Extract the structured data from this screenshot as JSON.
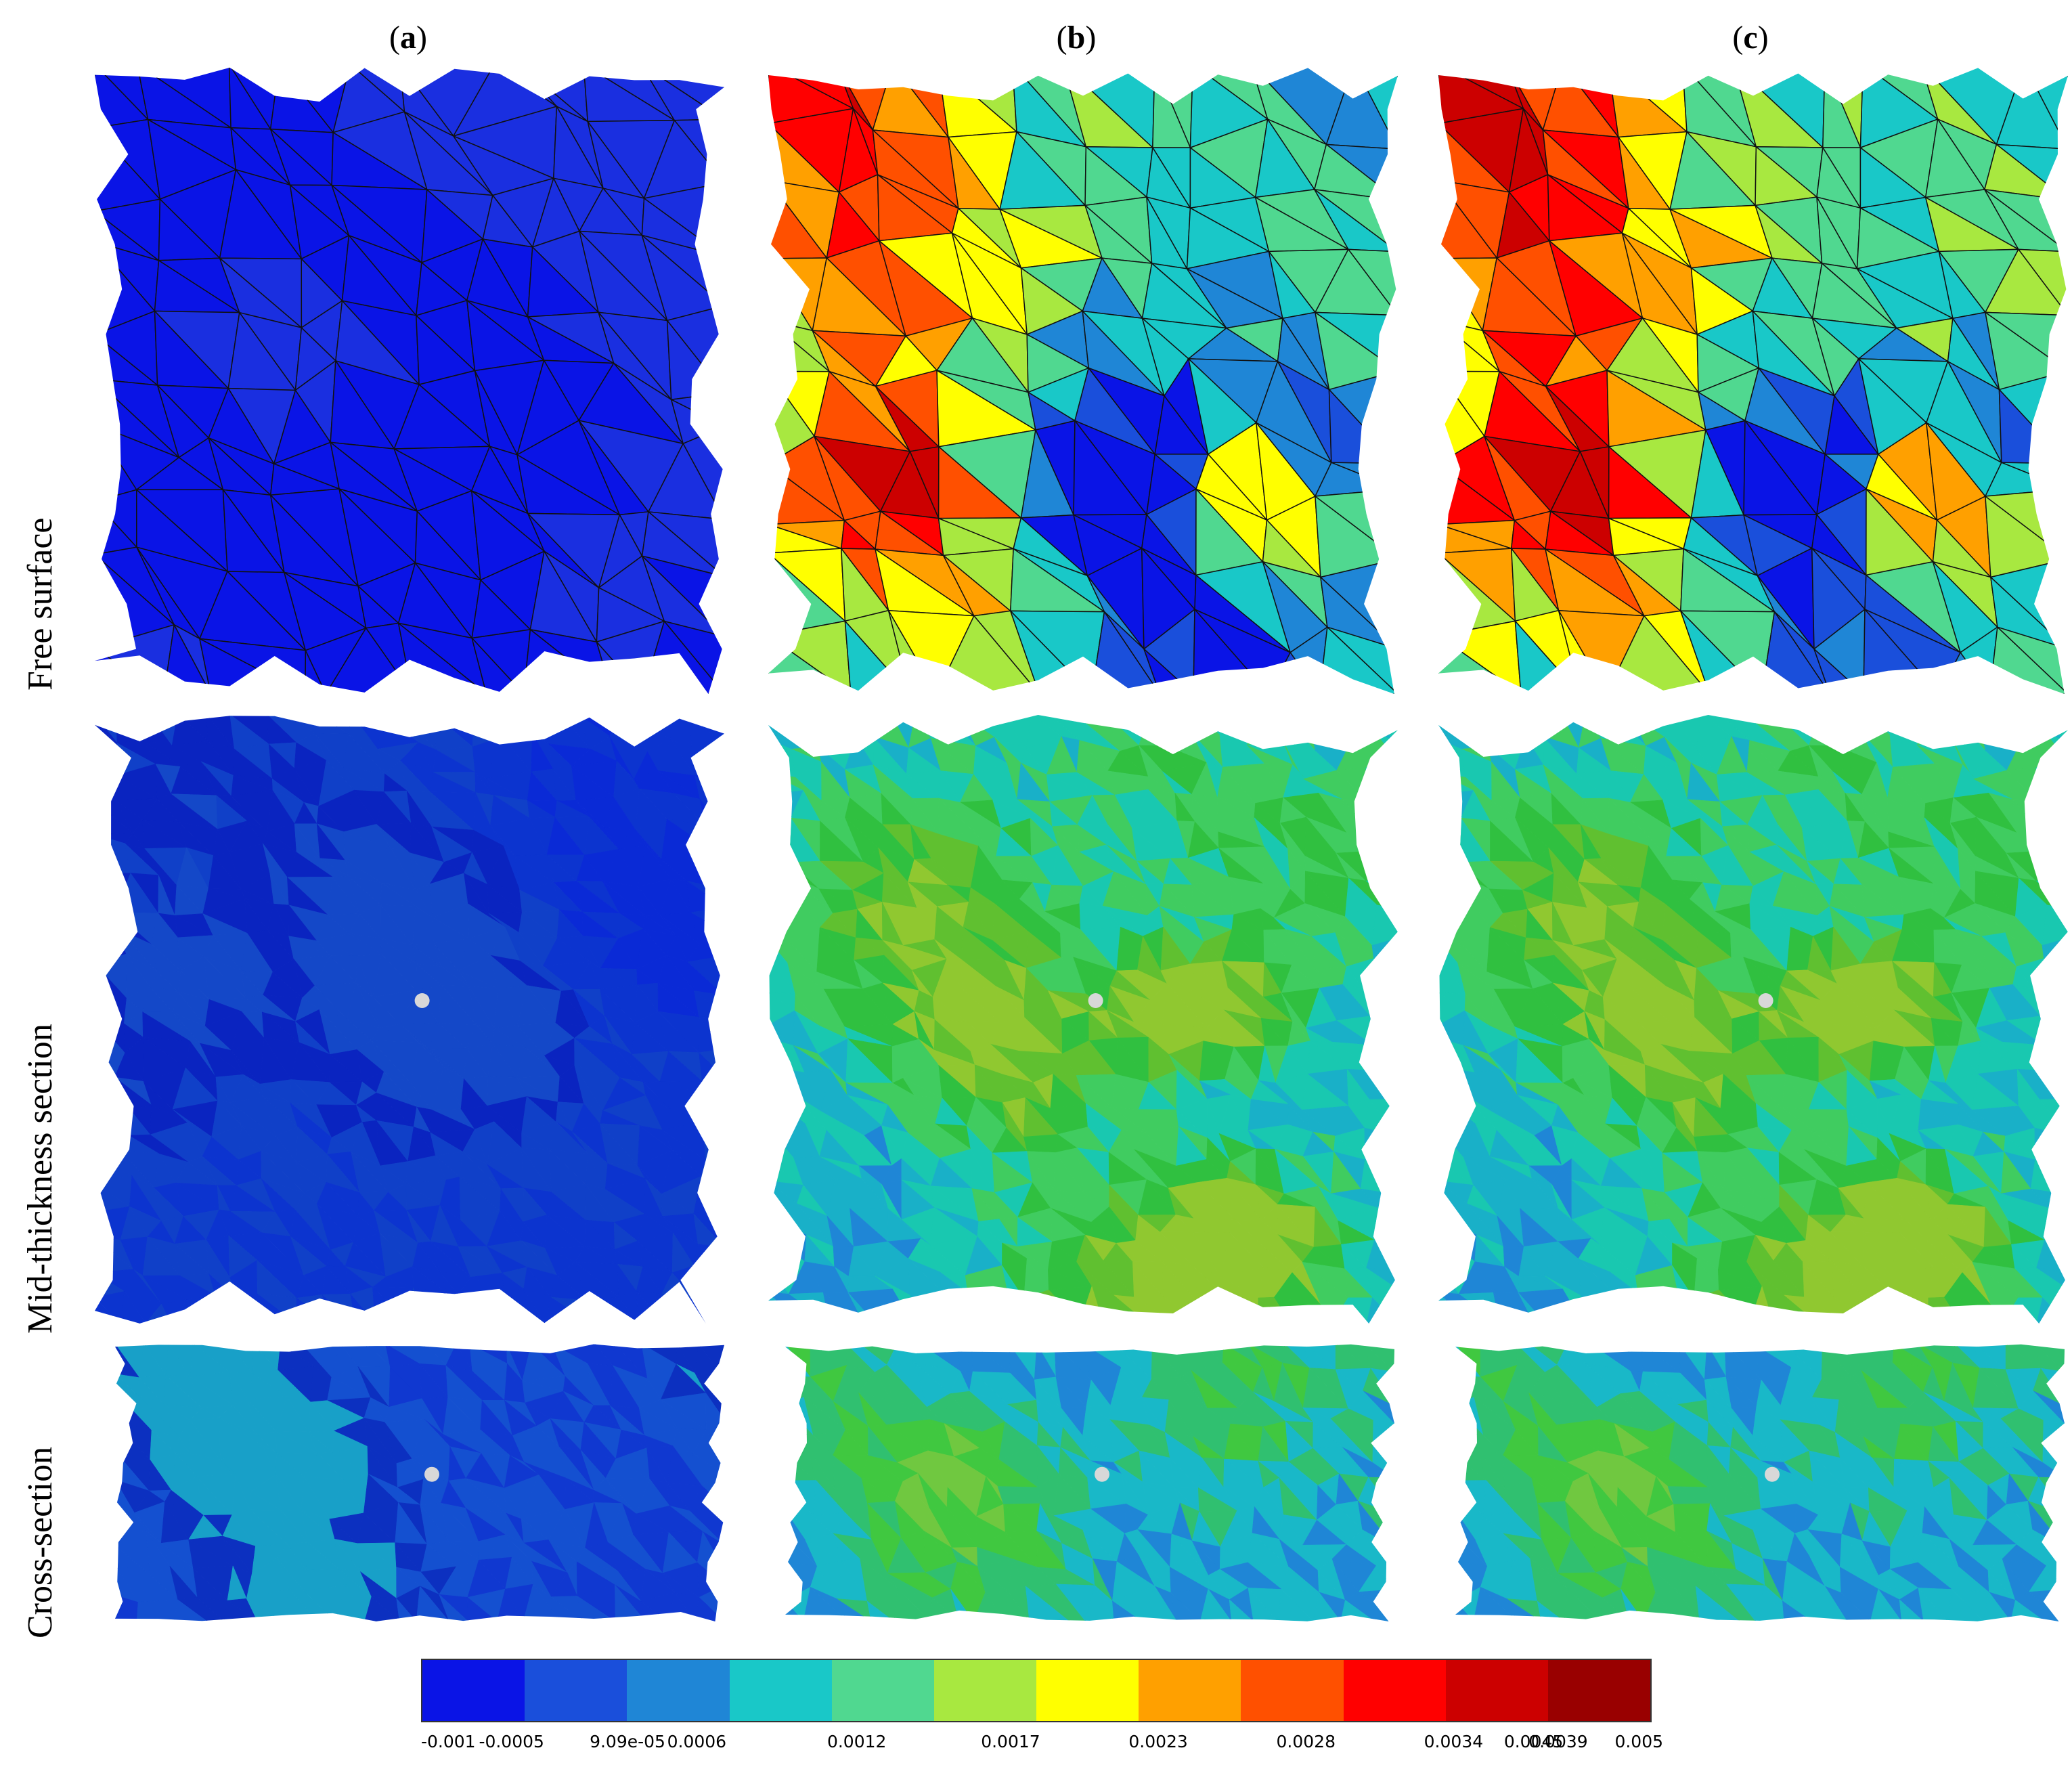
{
  "columns": [
    {
      "open": "(",
      "letter": "a",
      "close": ")"
    },
    {
      "open": "(",
      "letter": "b",
      "close": ")"
    },
    {
      "open": "(",
      "letter": "c",
      "close": ")"
    }
  ],
  "rows": [
    "Free surface",
    "Mid-thickness section",
    "Cross-section"
  ],
  "colorbar": {
    "colors": [
      "#0a14e6",
      "#1a4fdb",
      "#1f86d6",
      "#19c8c8",
      "#50d890",
      "#a8e840",
      "#ffff00",
      "#ffa000",
      "#ff5000",
      "#ff0000",
      "#cc0000",
      "#990000"
    ],
    "ticks": [
      "-0.001",
      "-0.0005",
      "9.09e-05",
      "0.0006",
      "0.0012",
      "0.0017",
      "0.0023",
      "0.0028",
      "0.0034",
      "0.0039",
      "0.0045",
      "0.005"
    ]
  },
  "field_palettes": {
    "free_a": [
      "#0a14e6",
      "#0a14e6",
      "#0a14e6",
      "#1a2fe0"
    ],
    "free_bc": [
      "#0a14e6",
      "#1a4fdb",
      "#1f86d6",
      "#19c8c8",
      "#50d890",
      "#a8e840",
      "#ffff00",
      "#ffa000",
      "#ff5000",
      "#ff0000",
      "#cc0000"
    ],
    "mid_a": [
      "#0a2ad6",
      "#0c34cf",
      "#1040c8",
      "#0a24c0",
      "#1448c8"
    ],
    "mid_bc": [
      "#1a4fdb",
      "#1f86d6",
      "#19b0c8",
      "#19c8b0",
      "#40cc60",
      "#30c040",
      "#60c030",
      "#90c830"
    ],
    "cross_a": [
      "#0a24d0",
      "#1038d0",
      "#1450d0",
      "#0c30c0",
      "#18a0c8"
    ],
    "cross_bc": [
      "#1a4fdb",
      "#1f86d6",
      "#19b8c8",
      "#30c070",
      "#40c840",
      "#70c840"
    ]
  }
}
